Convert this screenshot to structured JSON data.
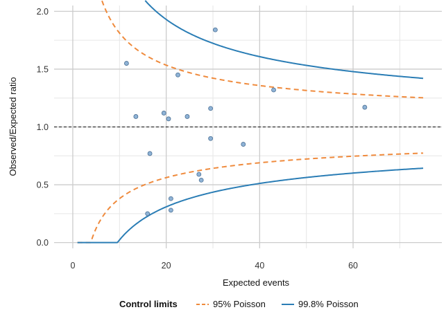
{
  "chart_data": {
    "type": "scatter",
    "title": "",
    "xlabel": "Expected events",
    "ylabel": "Observed/Expected ratio",
    "xlim": [
      -4,
      79
    ],
    "ylim": [
      -0.05,
      2.05
    ],
    "xticks": [
      0,
      20,
      40,
      60
    ],
    "yticks": [
      0.0,
      0.5,
      1.0,
      1.5,
      2.0
    ],
    "ytick_labels": [
      "0.0",
      "0.5",
      "1.0",
      "1.5",
      "2.0"
    ],
    "grid": true,
    "reference_line": {
      "y": 1.0,
      "style": "dashed",
      "color": "#111111"
    },
    "points": [
      {
        "x": 11.5,
        "y": 1.55
      },
      {
        "x": 13.5,
        "y": 1.09
      },
      {
        "x": 16.0,
        "y": 0.25
      },
      {
        "x": 16.5,
        "y": 0.77
      },
      {
        "x": 19.5,
        "y": 1.12
      },
      {
        "x": 20.5,
        "y": 1.07
      },
      {
        "x": 21.0,
        "y": 0.28
      },
      {
        "x": 21.0,
        "y": 0.38
      },
      {
        "x": 22.5,
        "y": 1.45
      },
      {
        "x": 24.5,
        "y": 1.09
      },
      {
        "x": 27.0,
        "y": 0.59
      },
      {
        "x": 27.5,
        "y": 0.54
      },
      {
        "x": 29.5,
        "y": 1.16
      },
      {
        "x": 29.5,
        "y": 0.9
      },
      {
        "x": 30.5,
        "y": 1.84
      },
      {
        "x": 36.5,
        "y": 0.85
      },
      {
        "x": 43.0,
        "y": 1.32
      },
      {
        "x": 62.5,
        "y": 1.17
      }
    ],
    "point_color": "#8fb3d6",
    "point_edge": "#4a6f94",
    "limits": [
      {
        "name": "95% Poisson",
        "color": "#ef8a3c",
        "style": "dashed",
        "z": 1.96
      },
      {
        "name": "99.8% Poisson",
        "color": "#2a7db5",
        "style": "solid",
        "z": 3.09
      }
    ],
    "limit_x_range": [
      1,
      75
    ],
    "legend": {
      "title": "Control limits",
      "position": "bottom"
    }
  }
}
